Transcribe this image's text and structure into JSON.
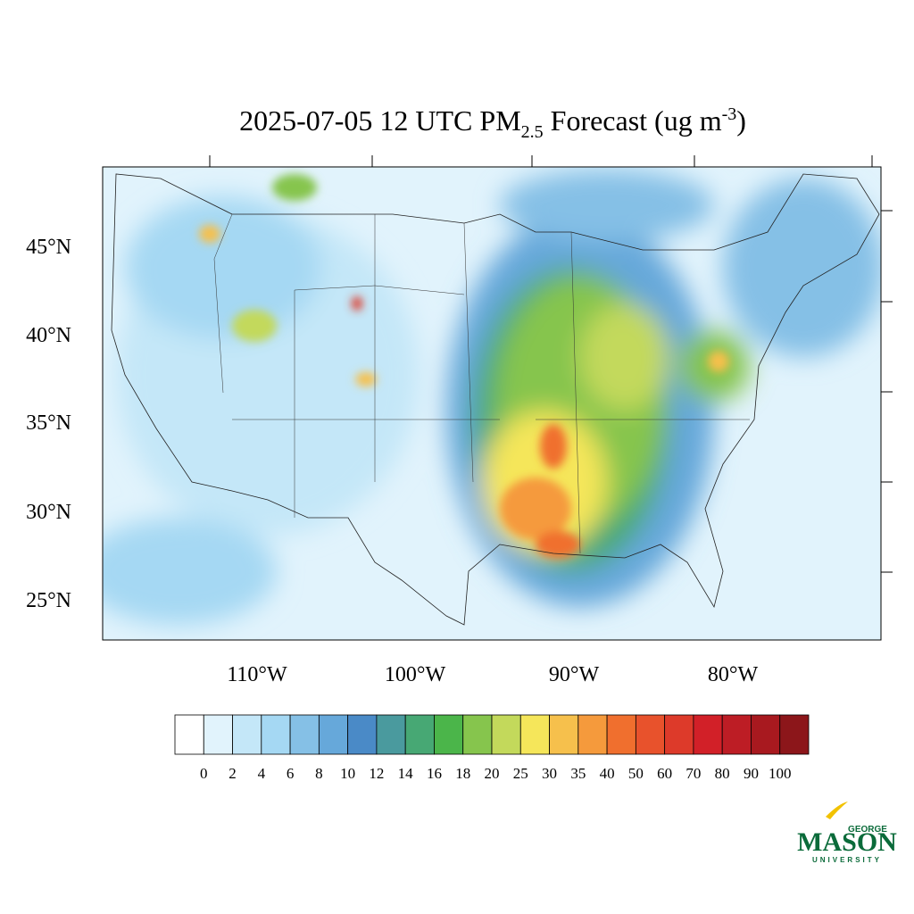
{
  "title": {
    "main": "2025-07-05 12 UTC PM",
    "sub": "2.5",
    "rest": " Forecast (ug m",
    "sup": "-3",
    "end": ")"
  },
  "map": {
    "lat_labels": [
      "45°N",
      "40°N",
      "35°N",
      "30°N",
      "25°N"
    ],
    "lon_labels": [
      "110°W",
      "100°W",
      "90°W",
      "80°W"
    ]
  },
  "colorbar": {
    "colors": [
      "#ffffff",
      "#e1f3fc",
      "#c4e7f8",
      "#a5d8f3",
      "#85c0e6",
      "#66a8da",
      "#4a8ac7",
      "#4a9a9e",
      "#47a874",
      "#4bb54a",
      "#86c54d",
      "#c3d95b",
      "#f5e65a",
      "#f6c04c",
      "#f59a3c",
      "#f06f2e",
      "#e8522c",
      "#dd3a2a",
      "#d22028",
      "#bd1d25",
      "#a8191f",
      "#8c161a"
    ],
    "labels": [
      "0",
      "2",
      "4",
      "6",
      "8",
      "10",
      "12",
      "14",
      "16",
      "18",
      "20",
      "25",
      "30",
      "35",
      "40",
      "50",
      "60",
      "70",
      "80",
      "90",
      "100"
    ]
  },
  "logo": {
    "top": "GEORGE",
    "main": "MASON",
    "bottom": "UNIVERSITY"
  }
}
